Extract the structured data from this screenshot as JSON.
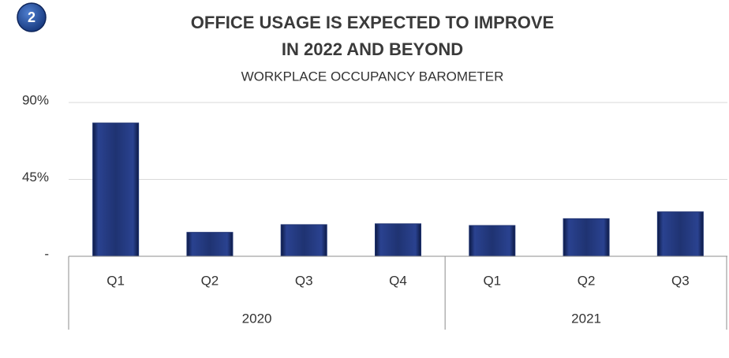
{
  "badge": "2",
  "chart_data": {
    "type": "bar",
    "title": [
      "OFFICE USAGE IS EXPECTED TO IMPROVE",
      "IN 2022 AND BEYOND"
    ],
    "subtitle": "WORKPLACE OCCUPANCY BAROMETER",
    "groups": [
      {
        "name": "2020",
        "categories": [
          "Q1",
          "Q2",
          "Q3",
          "Q4"
        ]
      },
      {
        "name": "2021",
        "categories": [
          "Q1",
          "Q2",
          "Q3"
        ]
      }
    ],
    "values": [
      78,
      14,
      18.5,
      19,
      18,
      22,
      26
    ],
    "color": "#1f3372",
    "ylim": [
      0,
      90
    ],
    "yticks": [
      {
        "value": 0,
        "label": "-"
      },
      {
        "value": 45,
        "label": "45%"
      },
      {
        "value": 90,
        "label": "90%"
      }
    ],
    "grid": true
  }
}
